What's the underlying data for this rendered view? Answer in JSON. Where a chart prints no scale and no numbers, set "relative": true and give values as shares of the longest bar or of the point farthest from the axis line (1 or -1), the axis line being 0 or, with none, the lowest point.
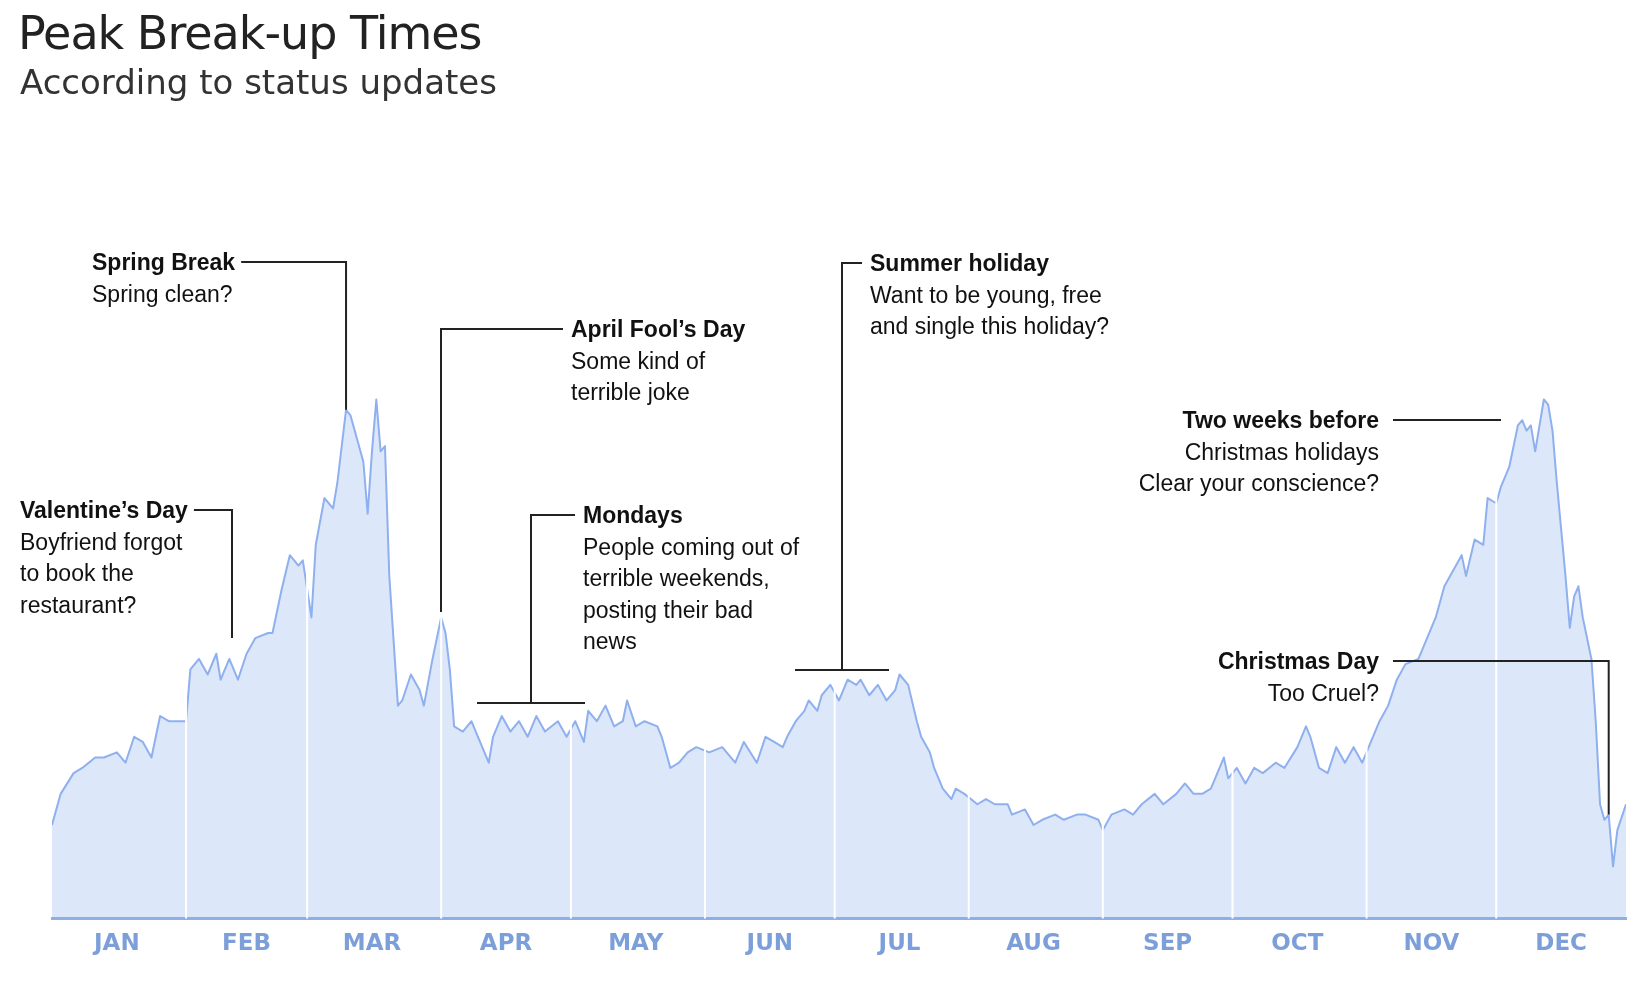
{
  "chart_data": {
    "type": "area",
    "title": "Peak Break-up Times",
    "subtitle": "According to status updates",
    "relative": true,
    "legend": false,
    "grid": "x",
    "marker": "none",
    "x": [
      "--01-01",
      "--01-03",
      "--01-06",
      "--01-08",
      "--01-11",
      "--01-13",
      "--01-16",
      "--01-18",
      "--01-20",
      "--01-22",
      "--01-24",
      "--01-26",
      "--01-28",
      "--01-30",
      "--02-01",
      "--02-02",
      "--02-04",
      "--02-06",
      "--02-08",
      "--02-09",
      "--02-11",
      "--02-13",
      "--02-15",
      "--02-17",
      "--02-20",
      "--02-21",
      "--02-23",
      "--02-25",
      "--02-27",
      "--02-28",
      "--03-02",
      "--03-03",
      "--03-05",
      "--03-07",
      "--03-08",
      "--03-10",
      "--03-11",
      "--03-12",
      "--03-14",
      "--03-15",
      "--03-16",
      "--03-17",
      "--03-18",
      "--03-19",
      "--03-20",
      "--03-22",
      "--03-23",
      "--03-25",
      "--03-27",
      "--03-28",
      "--03-30",
      "--04-01",
      "--04-02",
      "--04-03",
      "--04-04",
      "--04-06",
      "--04-08",
      "--04-09",
      "--04-12",
      "--04-13",
      "--04-15",
      "--04-17",
      "--04-19",
      "--04-21",
      "--04-23",
      "--04-25",
      "--04-28",
      "--04-30",
      "--05-02",
      "--05-04",
      "--05-05",
      "--05-07",
      "--05-09",
      "--05-11",
      "--05-13",
      "--05-14",
      "--05-16",
      "--05-18",
      "--05-21",
      "--05-22",
      "--05-24",
      "--05-26",
      "--05-28",
      "--05-30",
      "--06-02",
      "--06-05",
      "--06-08",
      "--06-10",
      "--06-13",
      "--06-15",
      "--06-17",
      "--06-19",
      "--06-20",
      "--06-22",
      "--06-24",
      "--06-25",
      "--06-27",
      "--06-28",
      "--06-30",
      "--07-02",
      "--07-04",
      "--07-06",
      "--07-07",
      "--07-09",
      "--07-11",
      "--07-13",
      "--07-15",
      "--07-16",
      "--07-18",
      "--07-20",
      "--07-21",
      "--07-23",
      "--07-24",
      "--07-26",
      "--07-28",
      "--07-29",
      "--07-31",
      "--08-03",
      "--08-05",
      "--08-07",
      "--08-10",
      "--08-11",
      "--08-14",
      "--08-16",
      "--08-18",
      "--08-21",
      "--08-23",
      "--08-26",
      "--08-28",
      "--08-31",
      "--09-01",
      "--09-03",
      "--09-06",
      "--09-08",
      "--09-10",
      "--09-13",
      "--09-15",
      "--09-18",
      "--09-20",
      "--09-22",
      "--09-24",
      "--09-26",
      "--09-29",
      "--09-30",
      "--10-02",
      "--10-04",
      "--10-06",
      "--10-08",
      "--10-11",
      "--10-13",
      "--10-16",
      "--10-18",
      "--10-19",
      "--10-21",
      "--10-23",
      "--10-25",
      "--10-27",
      "--10-29",
      "--10-31",
      "--11-02",
      "--11-04",
      "--11-06",
      "--11-08",
      "--11-10",
      "--11-13",
      "--11-15",
      "--11-17",
      "--11-19",
      "--11-21",
      "--11-23",
      "--11-24",
      "--11-26",
      "--11-28",
      "--11-29",
      "--12-01",
      "--12-02",
      "--12-04",
      "--12-06",
      "--12-07",
      "--12-08",
      "--12-09",
      "--12-10",
      "--12-12",
      "--12-13",
      "--12-14",
      "--12-15",
      "--12-17",
      "--12-18",
      "--12-19",
      "--12-20",
      "--12-21",
      "--12-23",
      "--12-24",
      "--12-25",
      "--12-26",
      "--12-27",
      "--12-28",
      "--12-29",
      "--12-31"
    ],
    "series": [
      {
        "color": "#8fb0ee",
        "values": [
          0.18,
          0.24,
          0.28,
          0.29,
          0.31,
          0.31,
          0.32,
          0.3,
          0.35,
          0.34,
          0.31,
          0.39,
          0.38,
          0.38,
          0.38,
          0.48,
          0.5,
          0.47,
          0.51,
          0.46,
          0.5,
          0.46,
          0.51,
          0.54,
          0.55,
          0.55,
          0.63,
          0.7,
          0.68,
          0.69,
          0.58,
          0.72,
          0.81,
          0.79,
          0.84,
          0.98,
          0.97,
          0.94,
          0.88,
          0.78,
          0.9,
          1.0,
          0.9,
          0.91,
          0.66,
          0.41,
          0.42,
          0.47,
          0.44,
          0.41,
          0.5,
          0.58,
          0.55,
          0.48,
          0.37,
          0.36,
          0.38,
          0.36,
          0.3,
          0.35,
          0.39,
          0.36,
          0.38,
          0.35,
          0.39,
          0.36,
          0.38,
          0.35,
          0.38,
          0.34,
          0.4,
          0.38,
          0.41,
          0.37,
          0.38,
          0.42,
          0.37,
          0.38,
          0.37,
          0.35,
          0.29,
          0.3,
          0.32,
          0.33,
          0.32,
          0.33,
          0.3,
          0.34,
          0.3,
          0.35,
          0.34,
          0.33,
          0.35,
          0.38,
          0.4,
          0.42,
          0.4,
          0.43,
          0.45,
          0.42,
          0.46,
          0.45,
          0.46,
          0.43,
          0.45,
          0.42,
          0.44,
          0.47,
          0.45,
          0.38,
          0.35,
          0.32,
          0.29,
          0.25,
          0.23,
          0.25,
          0.24,
          0.22,
          0.23,
          0.22,
          0.22,
          0.2,
          0.21,
          0.18,
          0.19,
          0.2,
          0.19,
          0.2,
          0.2,
          0.19,
          0.17,
          0.2,
          0.21,
          0.2,
          0.22,
          0.24,
          0.22,
          0.24,
          0.26,
          0.24,
          0.24,
          0.25,
          0.31,
          0.27,
          0.29,
          0.26,
          0.29,
          0.28,
          0.3,
          0.29,
          0.33,
          0.37,
          0.35,
          0.29,
          0.28,
          0.33,
          0.3,
          0.33,
          0.3,
          0.34,
          0.38,
          0.41,
          0.46,
          0.49,
          0.5,
          0.54,
          0.58,
          0.64,
          0.67,
          0.7,
          0.66,
          0.73,
          0.72,
          0.81,
          0.8,
          0.83,
          0.87,
          0.95,
          0.96,
          0.94,
          0.95,
          0.9,
          1.0,
          0.99,
          0.94,
          0.84,
          0.66,
          0.56,
          0.62,
          0.64,
          0.58,
          0.5,
          0.38,
          0.22,
          0.19,
          0.2,
          0.1,
          0.17,
          0.22
        ]
      }
    ],
    "xlim": [
      "--01-01",
      "--12-31"
    ],
    "xticks": [
      {
        "value": "--01-16",
        "label": "JAN"
      },
      {
        "value": "--02-01",
        "label": null
      },
      {
        "value": "--02-15",
        "label": "FEB"
      },
      {
        "value": "--03-01",
        "label": null
      },
      {
        "value": "--03-16",
        "label": "MAR"
      },
      {
        "value": "--04-01",
        "label": null
      },
      {
        "value": "--04-16",
        "label": "APR"
      },
      {
        "value": "--05-01",
        "label": null
      },
      {
        "value": "--05-16",
        "label": "MAY"
      },
      {
        "value": "--06-01",
        "label": null
      },
      {
        "value": "--06-16",
        "label": "JUN"
      },
      {
        "value": "--07-01",
        "label": null
      },
      {
        "value": "--07-16",
        "label": "JUL"
      },
      {
        "value": "--08-01",
        "label": null
      },
      {
        "value": "--08-16",
        "label": "AUG"
      },
      {
        "value": "--09-01",
        "label": null
      },
      {
        "value": "--09-16",
        "label": "SEP"
      },
      {
        "value": "--10-01",
        "label": null
      },
      {
        "value": "--10-16",
        "label": "OCT"
      },
      {
        "value": "--11-01",
        "label": null
      },
      {
        "value": "--11-16",
        "label": "NOV"
      },
      {
        "value": "--12-01",
        "label": null
      },
      {
        "value": "--12-16",
        "label": "DEC"
      }
    ],
    "annotations": [
      "Valentine’s Day\nBoyfriend forgot\nto book the\nrestaurant?",
      {
        "text": "Spring Break\nSpring clean?",
        "x": "--03-10",
        "y": 0.98
      },
      "April Fool’s Day\nSome kind of\nterrible joke",
      "Mondays\nPeople coming out of\nterrible weekends,\nposting their bad\nnews",
      "Summer holiday\nWant to be young, free\nand single this holiday?",
      "Two weeks before\nChristmas holidays\nClear your conscience?",
      {
        "text": "Christmas Day\nToo Cruel?",
        "x": "--12-27",
        "y": 0.2
      }
    ]
  }
}
